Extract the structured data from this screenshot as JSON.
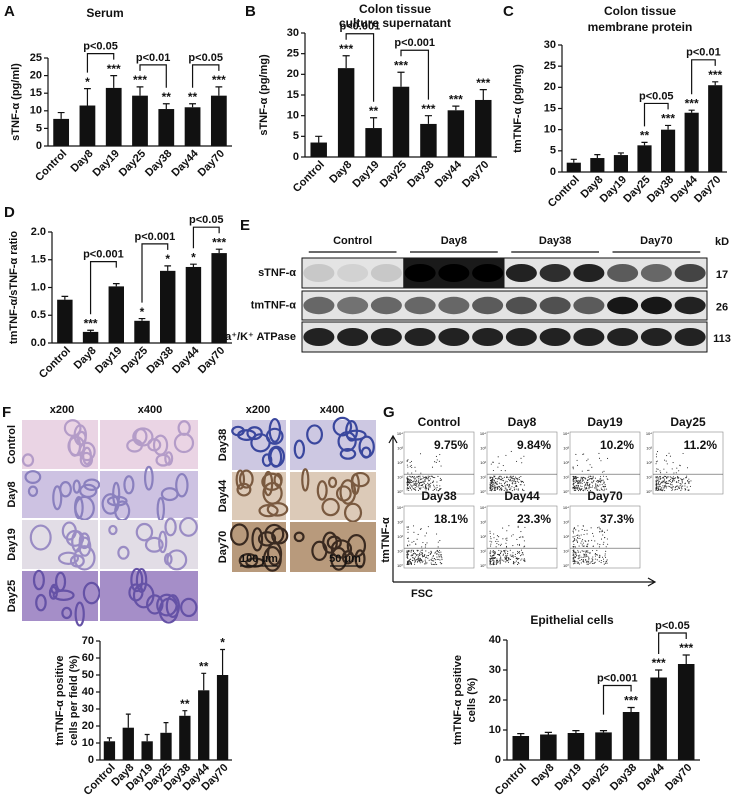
{
  "chart_data": [
    {
      "type": "bar",
      "panel": "A",
      "title": [
        "Serum"
      ],
      "ylabel": [
        "sTNF-α (pg/ml)"
      ],
      "categories": [
        "Control",
        "Day8",
        "Day19",
        "Day25",
        "Day38",
        "Day44",
        "Day70"
      ],
      "values": [
        7.7,
        11.5,
        16.5,
        14.3,
        10.5,
        11,
        14.3
      ],
      "errors": [
        1.8,
        4.8,
        3.5,
        2.5,
        1.5,
        1,
        2.5
      ],
      "stars": [
        null,
        "*",
        "***",
        "***",
        "**",
        "**",
        "***"
      ],
      "brackets": [
        {
          "from": "Day8",
          "to": "Day19",
          "label": "p<0.05"
        },
        {
          "from": "Day25",
          "to": "Day38",
          "label": "p<0.01"
        },
        {
          "from": "Day44",
          "to": "Day70",
          "label": "p<0.05"
        }
      ],
      "ylim": [
        0,
        25
      ],
      "yticks": [
        0,
        5,
        10,
        15,
        20,
        25
      ],
      "color": "#111111"
    },
    {
      "type": "bar",
      "panel": "B",
      "title": [
        "Colon tissue",
        "culture supernatant"
      ],
      "ylabel": [
        "sTNF-α (pg/mg)"
      ],
      "categories": [
        "Control",
        "Day8",
        "Day19",
        "Day25",
        "Day38",
        "Day44",
        "Day70"
      ],
      "values": [
        3.5,
        21.5,
        7,
        17,
        8,
        11.3,
        13.8
      ],
      "errors": [
        1.5,
        3,
        2.5,
        3.5,
        2,
        1,
        2.5
      ],
      "stars": [
        null,
        "***",
        "**",
        "***",
        "***",
        "***",
        "***"
      ],
      "brackets": [
        {
          "from": "Day8",
          "to": "Day19",
          "label": "p<0.001"
        },
        {
          "from": "Day25",
          "to": "Day38",
          "label": "p<0.001"
        }
      ],
      "ylim": [
        0,
        30
      ],
      "yticks": [
        0,
        5,
        10,
        15,
        20,
        25,
        30
      ],
      "color": "#111111"
    },
    {
      "type": "bar",
      "panel": "C",
      "title": [
        "Colon tissue",
        "membrane protein"
      ],
      "ylabel": [
        "tmTNF-α (pg/mg)"
      ],
      "categories": [
        "Control",
        "Day8",
        "Day19",
        "Day25",
        "Day38",
        "Day44",
        "Day70"
      ],
      "values": [
        2.2,
        3.3,
        4,
        6.3,
        10,
        14,
        20.5
      ],
      "errors": [
        0.8,
        0.8,
        0.5,
        0.7,
        1,
        0.6,
        0.8
      ],
      "stars": [
        null,
        null,
        null,
        "**",
        "***",
        "***",
        "***"
      ],
      "brackets": [
        {
          "from": "Day25",
          "to": "Day38",
          "label": "p<0.05"
        },
        {
          "from": "Day44",
          "to": "Day70",
          "label": "p<0.01"
        }
      ],
      "ylim": [
        0,
        30
      ],
      "yticks": [
        0,
        5,
        10,
        15,
        20,
        25,
        30
      ],
      "color": "#111111"
    },
    {
      "type": "bar",
      "panel": "D",
      "ylabel": [
        "tmTNF-α/sTNF-α ratio"
      ],
      "categories": [
        "Control",
        "Day8",
        "Day19",
        "Day25",
        "Day38",
        "Day44",
        "Day70"
      ],
      "values": [
        0.78,
        0.2,
        1.02,
        0.4,
        1.3,
        1.37,
        1.62
      ],
      "errors": [
        0.06,
        0.03,
        0.05,
        0.04,
        0.09,
        0.05,
        0.07
      ],
      "stars": [
        null,
        "***",
        null,
        "*",
        "*",
        "*",
        "***"
      ],
      "brackets": [
        {
          "from": "Day8",
          "to": "Day19",
          "label": "p<0.001"
        },
        {
          "from": "Day25",
          "to": "Day38",
          "label": "p<0.001"
        },
        {
          "from": "Day44",
          "to": "Day70",
          "label": "p<0.05"
        }
      ],
      "ylim": [
        0,
        2
      ],
      "yticks": [
        {
          "value": 0,
          "label": "0.0"
        },
        0.5,
        {
          "value": 1,
          "label": "1.0"
        },
        1.5,
        {
          "value": 2,
          "label": "2.0"
        }
      ],
      "color": "#111111"
    },
    {
      "type": "bar",
      "ylabel": [
        "tmTNF-α positive",
        "cells per field (%)"
      ],
      "categories": [
        "Control",
        "Day8",
        "Day19",
        "Day25",
        "Day38",
        "Day44",
        "Day70"
      ],
      "values": [
        11,
        19,
        11,
        16,
        26,
        41,
        50
      ],
      "errors": [
        2,
        8,
        4,
        6,
        3,
        10,
        15
      ],
      "stars": [
        null,
        null,
        null,
        null,
        "**",
        "**",
        "*"
      ],
      "brackets": [],
      "ylim": [
        0,
        70
      ],
      "yticks": [
        0,
        10,
        20,
        30,
        40,
        50,
        60,
        70
      ],
      "color": "#111111"
    },
    {
      "type": "bar",
      "title": [
        "Epithelial cells"
      ],
      "ylabel": [
        "tmTNF-α positive",
        "cells (%)"
      ],
      "categories": [
        "Control",
        "Day8",
        "Day19",
        "Day25",
        "Day38",
        "Day44",
        "Day70"
      ],
      "values": [
        8,
        8.5,
        9,
        9.2,
        16,
        27.5,
        32
      ],
      "errors": [
        0.8,
        0.7,
        0.8,
        0.6,
        1.5,
        2.5,
        3
      ],
      "stars": [
        null,
        null,
        null,
        null,
        "***",
        "***",
        "***"
      ],
      "brackets": [
        {
          "from": "Day25",
          "to": "Day38",
          "label": "p<0.001"
        },
        {
          "from": "Day44",
          "to": "Day70",
          "label": "p<0.05"
        }
      ],
      "ylim": [
        0,
        40
      ],
      "yticks": [
        0,
        10,
        20,
        30,
        40
      ],
      "color": "#111111"
    }
  ],
  "blot": {
    "panel": "E",
    "groups": [
      "Control",
      "Day8",
      "Day38",
      "Day70"
    ],
    "unit": "kD",
    "rows": [
      {
        "label": "sTNF-α",
        "kd": 17
      },
      {
        "label": "tmTNF-α",
        "kd": 26
      },
      {
        "label": "Na⁺/K⁺ ATPase",
        "kd": 113
      }
    ]
  },
  "histology": {
    "panel": "F",
    "columns": [
      "x200",
      "x400"
    ],
    "rows_left": [
      "Control",
      "Day8",
      "Day19",
      "Day25"
    ],
    "rows_right": [
      "Day38",
      "Day44",
      "Day70"
    ],
    "scale_bars": [
      "100 μm",
      "50 μm"
    ]
  },
  "flow": {
    "panel": "G",
    "y_axis": "tmTNF-α",
    "x_axis": "FSC",
    "tick_labels": [
      "10⁰",
      "10¹",
      "10²",
      "10³",
      "10⁴"
    ],
    "plots": [
      {
        "label": "Control",
        "percent": "9.75%"
      },
      {
        "label": "Day8",
        "percent": "9.84%"
      },
      {
        "label": "Day19",
        "percent": "10.2%"
      },
      {
        "label": "Day25",
        "percent": "11.2%"
      },
      {
        "label": "Day38",
        "percent": "18.1%"
      },
      {
        "label": "Day44",
        "percent": "23.3%"
      },
      {
        "label": "Day70",
        "percent": "37.3%"
      }
    ]
  }
}
